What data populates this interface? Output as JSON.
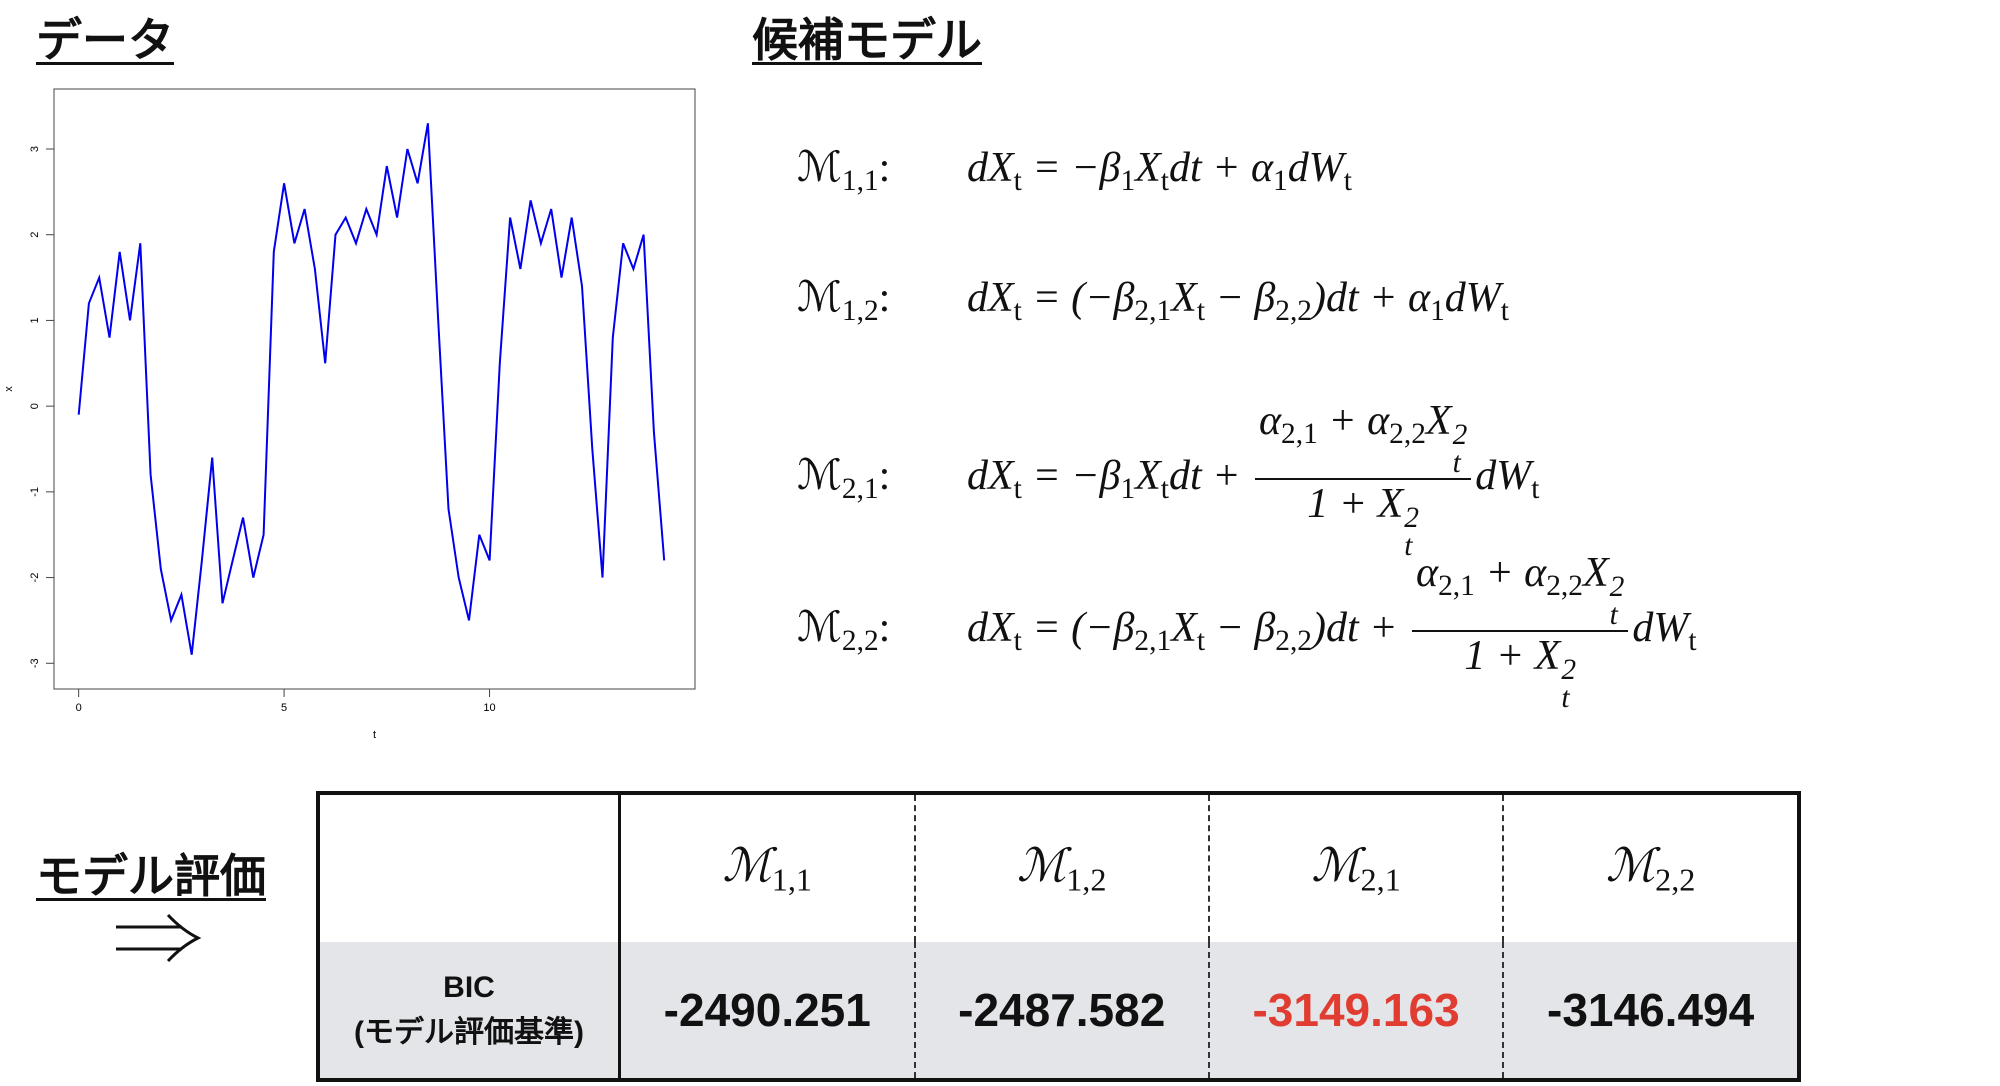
{
  "headings": {
    "data": "データ",
    "models": "候補モデル",
    "evaluation": "モデル評価"
  },
  "chart_data": {
    "type": "line",
    "xlabel": "t",
    "ylabel": "x",
    "color": "#0000ee",
    "x": [
      0,
      0.25,
      0.5,
      0.75,
      1,
      1.25,
      1.5,
      1.75,
      2,
      2.25,
      2.5,
      2.75,
      3,
      3.25,
      3.5,
      3.75,
      4,
      4.25,
      4.5,
      4.75,
      5,
      5.25,
      5.5,
      5.75,
      6,
      6.25,
      6.5,
      6.75,
      7,
      7.25,
      7.5,
      7.75,
      8,
      8.25,
      8.5,
      8.75,
      9,
      9.25,
      9.5,
      9.75,
      10,
      10.25,
      10.5,
      10.75,
      11,
      11.25,
      11.5,
      11.75,
      12,
      12.25,
      12.5,
      12.75,
      13,
      13.25,
      13.5,
      13.75,
      14,
      14.25
    ],
    "values": [
      -0.1,
      1.2,
      1.5,
      0.8,
      1.8,
      1.0,
      1.9,
      -0.8,
      -1.9,
      -2.5,
      -2.2,
      -2.9,
      -1.8,
      -0.6,
      -2.3,
      -1.8,
      -1.3,
      -2.0,
      -1.5,
      1.8,
      2.6,
      1.9,
      2.3,
      1.6,
      0.5,
      2.0,
      2.2,
      1.9,
      2.3,
      2.0,
      2.8,
      2.2,
      3.0,
      2.6,
      3.3,
      1.0,
      -1.2,
      -2.0,
      -2.5,
      -1.5,
      -1.8,
      0.5,
      2.2,
      1.6,
      2.4,
      1.9,
      2.3,
      1.5,
      2.2,
      1.4,
      -0.5,
      -2.0,
      0.8,
      1.9,
      1.6,
      2.0,
      -0.3,
      -1.8
    ],
    "xlim": [
      -0.6,
      15
    ],
    "ylim": [
      -3.3,
      3.7
    ],
    "xticks": [
      0,
      5,
      10
    ],
    "yticks": [
      -3,
      -2,
      -1,
      0,
      1,
      2,
      3
    ]
  },
  "equations": [
    {
      "label": [
        {
          "t": "ℳ"
        },
        {
          "sub": "1,1"
        },
        {
          "t": ":"
        }
      ],
      "formula": [
        {
          "t": "dX"
        },
        {
          "sub": "t"
        },
        {
          "t": " = −β"
        },
        {
          "sub": "1"
        },
        {
          "t": "X"
        },
        {
          "sub": "t"
        },
        {
          "t": "dt + α"
        },
        {
          "sub": "1"
        },
        {
          "t": "dW"
        },
        {
          "sub": "t"
        }
      ]
    },
    {
      "label": [
        {
          "t": "ℳ"
        },
        {
          "sub": "1,2"
        },
        {
          "t": ":"
        }
      ],
      "formula": [
        {
          "t": "dX"
        },
        {
          "sub": "t"
        },
        {
          "t": " = (−β"
        },
        {
          "sub": "2,1"
        },
        {
          "t": "X"
        },
        {
          "sub": "t"
        },
        {
          "t": " − β"
        },
        {
          "sub": "2,2"
        },
        {
          "t": ")dt + α"
        },
        {
          "sub": "1"
        },
        {
          "t": "dW"
        },
        {
          "sub": "t"
        }
      ]
    },
    {
      "label": [
        {
          "t": "ℳ"
        },
        {
          "sub": "2,1"
        },
        {
          "t": ":"
        }
      ],
      "formula": [
        {
          "t": "dX"
        },
        {
          "sub": "t"
        },
        {
          "t": " = −β"
        },
        {
          "sub": "1"
        },
        {
          "t": "X"
        },
        {
          "sub": "t"
        },
        {
          "t": "dt + "
        },
        {
          "num": [
            {
              "t": "α"
            },
            {
              "sub": "2,1"
            },
            {
              "t": " + α"
            },
            {
              "sub": "2,2"
            },
            {
              "t": "X"
            },
            {
              "sub": "t",
              "sup": "2"
            }
          ],
          "den": [
            {
              "t": "1 + X"
            },
            {
              "sub": "t",
              "sup": "2"
            }
          ]
        },
        {
          "t": "dW"
        },
        {
          "sub": "t"
        }
      ]
    },
    {
      "label": [
        {
          "t": "ℳ"
        },
        {
          "sub": "2,2"
        },
        {
          "t": ":"
        }
      ],
      "formula": [
        {
          "t": "dX"
        },
        {
          "sub": "t"
        },
        {
          "t": " = (−β"
        },
        {
          "sub": "2,1"
        },
        {
          "t": "X"
        },
        {
          "sub": "t"
        },
        {
          "t": " − β"
        },
        {
          "sub": "2,2"
        },
        {
          "t": ")dt + "
        },
        {
          "num": [
            {
              "t": "α"
            },
            {
              "sub": "2,1"
            },
            {
              "t": " + α"
            },
            {
              "sub": "2,2"
            },
            {
              "t": "X"
            },
            {
              "sub": "t",
              "sup": "2"
            }
          ],
          "den": [
            {
              "t": "1 + X"
            },
            {
              "sub": "t",
              "sup": "2"
            }
          ]
        },
        {
          "t": "dW"
        },
        {
          "sub": "t"
        }
      ]
    }
  ],
  "table": {
    "headers": [
      [
        {
          "t": "ℳ"
        },
        {
          "sub": "1,1"
        }
      ],
      [
        {
          "t": "ℳ"
        },
        {
          "sub": "1,2"
        }
      ],
      [
        {
          "t": "ℳ"
        },
        {
          "sub": "2,1"
        }
      ],
      [
        {
          "t": "ℳ"
        },
        {
          "sub": "2,2"
        }
      ]
    ],
    "row_label": [
      "BIC",
      "(モデル評価基準)"
    ],
    "values": [
      -2490.251,
      -2487.582,
      -3149.163,
      -3146.494
    ],
    "highlight_index": 2,
    "highlight_color": "#e03c31"
  }
}
